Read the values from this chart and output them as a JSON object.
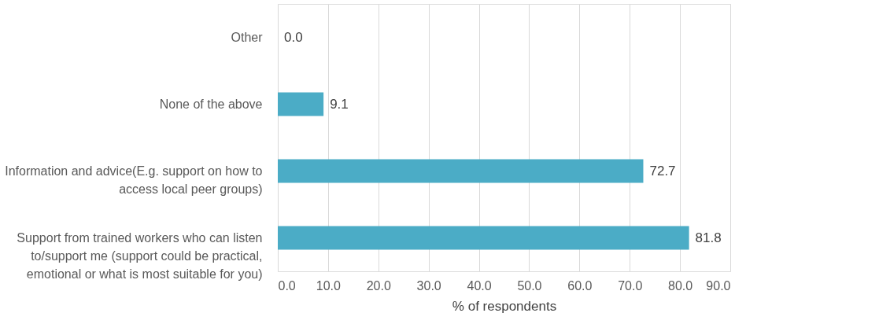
{
  "chart_data": {
    "type": "bar",
    "orientation": "horizontal",
    "categories": [
      "Other",
      "None of the above",
      "Information and advice(E.g. support on how to\naccess local peer groups)",
      "Support from trained workers who can listen\nto/support me (support could be practical,\nemotional or what is most suitable for you)"
    ],
    "values": [
      0.0,
      9.1,
      72.7,
      81.8
    ],
    "value_labels": [
      "0.0",
      "9.1",
      "72.7",
      "81.8"
    ],
    "color": "#4bacc6",
    "xlabel": "% of respondents",
    "xlim": [
      0,
      90
    ],
    "xticks": [
      {
        "value": 0,
        "label": "0.0"
      },
      {
        "value": 10,
        "label": "10.0"
      },
      {
        "value": 20,
        "label": "20.0"
      },
      {
        "value": 30,
        "label": "30.0"
      },
      {
        "value": 40,
        "label": "40.0"
      },
      {
        "value": 50,
        "label": "50.0"
      },
      {
        "value": 60,
        "label": "60.0"
      },
      {
        "value": 70,
        "label": "70.0"
      },
      {
        "value": 80,
        "label": "80.0"
      },
      {
        "value": 90,
        "label": "90.0"
      }
    ],
    "grid": "x"
  }
}
